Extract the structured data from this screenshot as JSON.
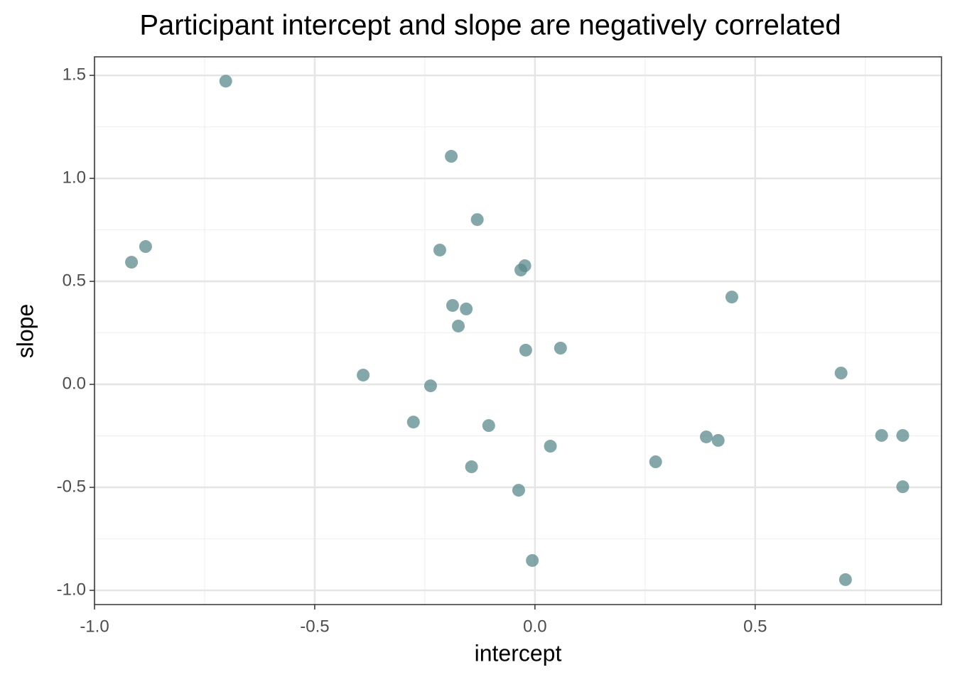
{
  "chart_data": {
    "type": "scatter",
    "title": "Participant intercept and slope are negatively correlated",
    "x_label": "intercept",
    "y_label": "slope",
    "color": "#5b8a8c",
    "x": [
      -0.702,
      -0.884,
      -0.916,
      -0.19,
      -0.131,
      -0.216,
      -0.023,
      -0.032,
      -0.187,
      -0.156,
      -0.174,
      -0.021,
      0.058,
      0.447,
      -0.39,
      -0.237,
      -0.276,
      -0.105,
      0.035,
      -0.144,
      -0.037,
      -0.006,
      0.274,
      0.389,
      0.416,
      0.695,
      0.787,
      0.835,
      0.835,
      0.705
    ],
    "y": [
      1.472,
      0.669,
      0.593,
      1.107,
      0.8,
      0.652,
      0.576,
      0.555,
      0.383,
      0.366,
      0.283,
      0.166,
      0.176,
      0.424,
      0.045,
      -0.007,
      -0.183,
      -0.2,
      -0.3,
      -0.4,
      -0.514,
      -0.855,
      -0.376,
      -0.255,
      -0.272,
      0.055,
      -0.248,
      -0.248,
      -0.497,
      -0.948
    ],
    "xlim": [
      -1.0,
      0.923
    ],
    "ylim": [
      -1.069,
      1.59
    ],
    "xticks": [
      {
        "value": -1.0,
        "label": "-1.0"
      },
      -0.5,
      {
        "value": 0,
        "label": "0.0"
      },
      0.5
    ],
    "yticks": [
      {
        "value": -1.0,
        "label": "-1.0"
      },
      -0.5,
      {
        "value": 0,
        "label": "0.0"
      },
      0.5,
      {
        "value": 1.0,
        "label": "1.0"
      },
      1.5
    ],
    "grid": true,
    "minor_grid": true
  }
}
